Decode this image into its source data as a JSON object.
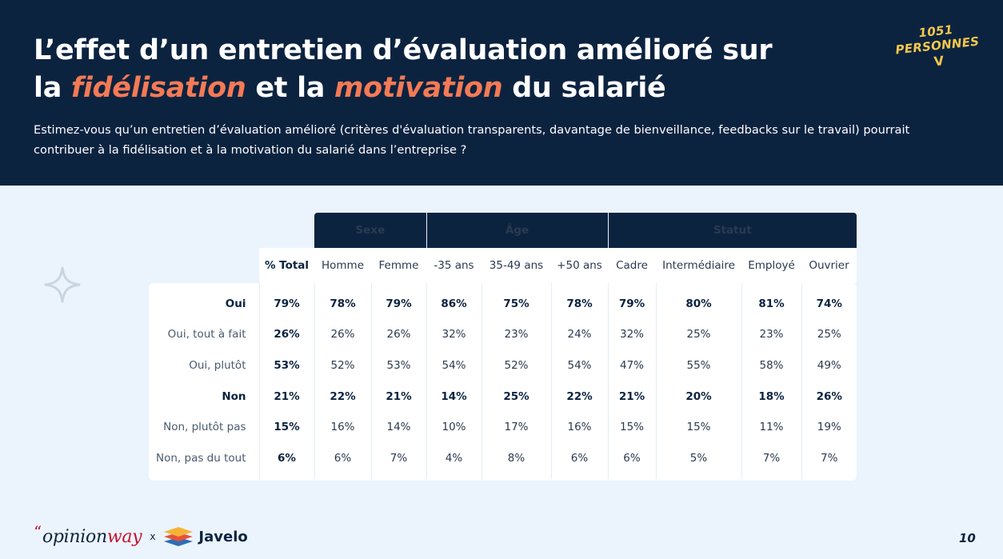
{
  "header": {
    "title_line1": "L’effet d’un entretien d’évaluation amélioré sur",
    "title_pre": "la ",
    "title_accent1": "fidélisation",
    "title_mid": " et la ",
    "title_accent2": "motivation",
    "title_post": " du salarié",
    "question": "Estimez-vous qu’un entretien d’évaluation amélioré (critères d'évaluation transparents, davantage de bienveillance, feedbacks sur le travail) pourrait contribuer à la fidélisation et à la motivation du salarié dans l’entreprise ?",
    "accent_color": "#f47a55",
    "background_color": "#0c2340"
  },
  "badge": {
    "text": "1051 PERSONNES",
    "arrow": "V",
    "color": "#f5c84a"
  },
  "table": {
    "groups": [
      "Sexe",
      "Âge",
      "Statut"
    ],
    "columns": [
      "% Total",
      "Homme",
      "Femme",
      "-35 ans",
      "35-49 ans",
      "+50 ans",
      "Cadre",
      "Intermédiaire",
      "Employé",
      "Ouvrier"
    ],
    "rows": [
      {
        "label": "Oui",
        "values": [
          "79%",
          "78%",
          "79%",
          "86%",
          "75%",
          "78%",
          "79%",
          "80%",
          "81%",
          "74%"
        ]
      },
      {
        "label": "Oui, tout à fait",
        "values": [
          "26%",
          "26%",
          "26%",
          "32%",
          "23%",
          "24%",
          "32%",
          "25%",
          "23%",
          "25%"
        ]
      },
      {
        "label": "Oui, plutôt",
        "values": [
          "53%",
          "52%",
          "53%",
          "54%",
          "52%",
          "54%",
          "47%",
          "55%",
          "58%",
          "49%"
        ]
      },
      {
        "label": "Non",
        "values": [
          "21%",
          "22%",
          "21%",
          "14%",
          "25%",
          "22%",
          "21%",
          "20%",
          "18%",
          "26%"
        ]
      },
      {
        "label": "Non, plutôt pas",
        "values": [
          "15%",
          "16%",
          "14%",
          "10%",
          "17%",
          "16%",
          "15%",
          "15%",
          "11%",
          "19%"
        ]
      },
      {
        "label": "Non, pas du tout",
        "values": [
          "6%",
          "6%",
          "7%",
          "4%",
          "8%",
          "6%",
          "6%",
          "5%",
          "7%",
          "7%"
        ]
      }
    ]
  },
  "footer": {
    "logo_quote": "“",
    "logo_opinion": "opinion",
    "logo_way": "way",
    "logo_times": "x",
    "logo_javelo": "Javelo",
    "page_number": "10"
  }
}
